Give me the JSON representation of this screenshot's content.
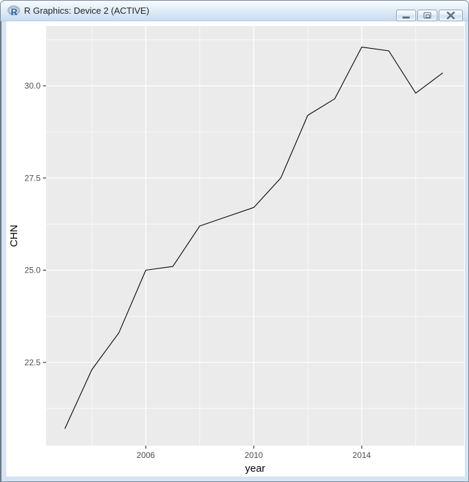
{
  "window": {
    "title": "R Graphics: Device 2 (ACTIVE)",
    "app_icon": "r-logo-icon",
    "controls": [
      {
        "name": "minimize",
        "icon": "minimize-icon"
      },
      {
        "name": "maximize",
        "icon": "maximize-icon"
      },
      {
        "name": "close",
        "icon": "close-icon"
      }
    ]
  },
  "chrome_colors": {
    "titlebar_top": "#f8fbfe",
    "titlebar_bottom": "#c8dbf0",
    "frame": "#d5e4f4",
    "button_glyph": "#5f7183"
  },
  "chart_data": {
    "type": "line",
    "title": "",
    "xlabel": "year",
    "ylabel": "CHN",
    "x": [
      2003,
      2004,
      2005,
      2006,
      2007,
      2008,
      2009,
      2010,
      2011,
      2012,
      2013,
      2014,
      2015,
      2016,
      2017
    ],
    "series": [
      {
        "name": "CHN",
        "values": [
          20.7,
          22.3,
          23.3,
          25.0,
          25.1,
          26.2,
          26.45,
          26.7,
          27.5,
          29.2,
          29.65,
          31.05,
          30.95,
          29.8,
          30.35
        ]
      }
    ],
    "x_major_ticks": [
      2006,
      2010,
      2014
    ],
    "x_tick_labels": [
      "2006",
      "2010",
      "2014"
    ],
    "x_minor_ticks": [
      2004,
      2008,
      2012,
      2016
    ],
    "y_major_ticks": [
      22.5,
      25.0,
      27.5,
      30.0
    ],
    "y_tick_labels": [
      "22.5",
      "25.0",
      "27.5",
      "30.0"
    ],
    "y_minor_ticks": [
      21.25,
      23.75,
      26.25,
      28.75,
      31.25
    ],
    "xlim": [
      2002.3,
      2017.7
    ],
    "ylim": [
      20.2,
      31.6
    ],
    "grid": "major+minor",
    "legend": "none",
    "panel_bg": "#ebebeb",
    "grid_color": "#ffffff",
    "line_color": "#000000",
    "tick_label_color": "#4d4d4d",
    "axis_title_color": "#000000"
  }
}
